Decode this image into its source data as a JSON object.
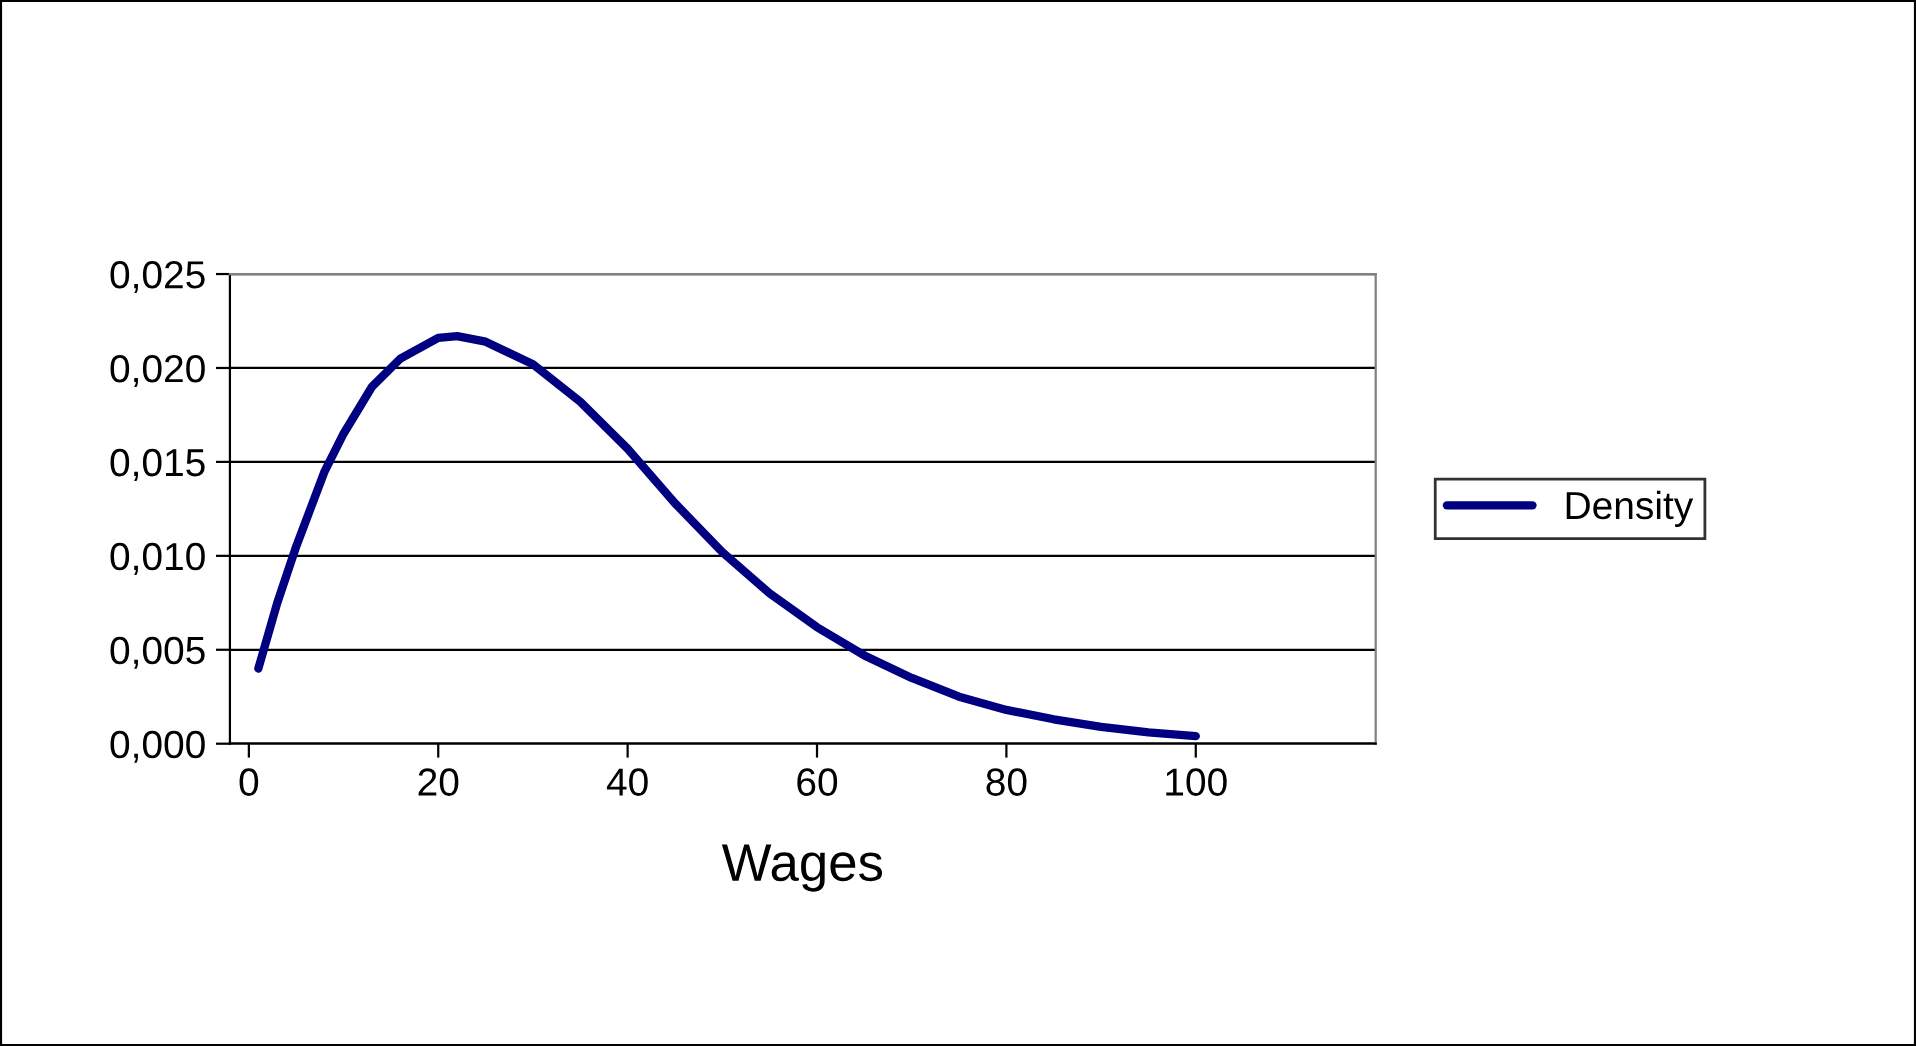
{
  "chart_data": {
    "type": "line",
    "xlabel": "Wages",
    "x": [
      1,
      3,
      5,
      8,
      10,
      13,
      16,
      20,
      22,
      25,
      30,
      35,
      40,
      45,
      50,
      55,
      60,
      65,
      70,
      75,
      80,
      85,
      90,
      95,
      100
    ],
    "series": [
      {
        "name": "Density",
        "color": "#000080",
        "values": [
          0.004,
          0.0075,
          0.0105,
          0.0145,
          0.0165,
          0.019,
          0.0205,
          0.0216,
          0.0217,
          0.0214,
          0.0202,
          0.0182,
          0.0157,
          0.0128,
          0.0102,
          0.008,
          0.0062,
          0.0047,
          0.0035,
          0.0025,
          0.0018,
          0.0013,
          0.0009,
          0.0006,
          0.0004
        ]
      }
    ],
    "xlim": [
      -2,
      119
    ],
    "xticks": [
      0,
      20,
      40,
      60,
      80,
      100
    ],
    "ylim": [
      0,
      0.025
    ],
    "yticks": [
      {
        "value": 0,
        "label": "0,000"
      },
      {
        "value": 0.005,
        "label": "0,005"
      },
      {
        "value": 0.01,
        "label": "0,010"
      },
      {
        "value": 0.015,
        "label": "0,015"
      },
      {
        "value": 0.02,
        "label": "0,020"
      },
      {
        "value": 0.025,
        "label": "0,025"
      }
    ],
    "grid": "y",
    "legend": "right",
    "marker": "none",
    "line_style": "solid"
  }
}
